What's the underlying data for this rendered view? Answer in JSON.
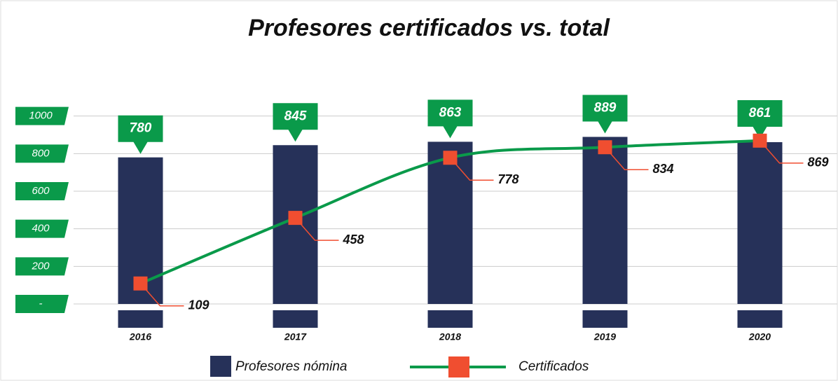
{
  "chart_data": {
    "type": "bar_line",
    "title": "Profesores certificados vs. total",
    "categories": [
      "2016",
      "2017",
      "2018",
      "2019",
      "2020"
    ],
    "series": [
      {
        "name": "Profesores nómina",
        "type": "bar",
        "color": "#263159",
        "values": [
          780,
          845,
          863,
          889,
          861
        ]
      },
      {
        "name": "Certificados",
        "type": "line",
        "color": "#0a9a4a",
        "marker_color": "#f04e30",
        "values": [
          109,
          458,
          778,
          834,
          869
        ]
      }
    ],
    "ylim": [
      0,
      1200
    ],
    "yticks": [
      {
        "value": 0,
        "label": "-"
      },
      200,
      400,
      600,
      800,
      1000
    ],
    "grid": true,
    "legend": "bottom"
  }
}
